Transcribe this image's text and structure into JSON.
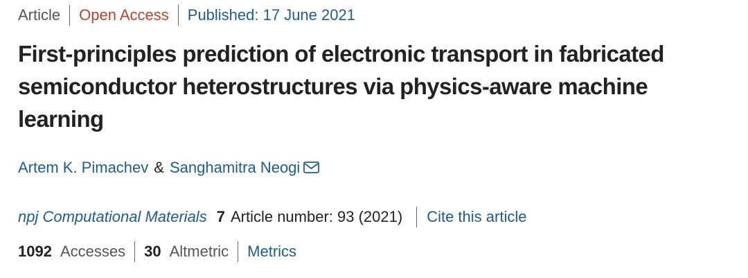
{
  "header": {
    "type": "Article",
    "access": "Open Access",
    "published": "Published: 17 June 2021"
  },
  "title": "First-principles prediction of electronic transport in fabricated semiconductor heterostructures via physics-aware machine learning",
  "authors": [
    "Artem K. Pimachev",
    "Sanghamitra Neogi"
  ],
  "author_separator": "&",
  "citation": {
    "journal": "npj Computational Materials",
    "volume": "7",
    "article_number": "Article number: 93 (2021)",
    "cite_link": "Cite this article"
  },
  "metrics": {
    "accesses_count": "1092",
    "accesses_label": "Accesses",
    "altmetric_count": "30",
    "altmetric_label": "Altmetric",
    "metrics_link": "Metrics"
  }
}
